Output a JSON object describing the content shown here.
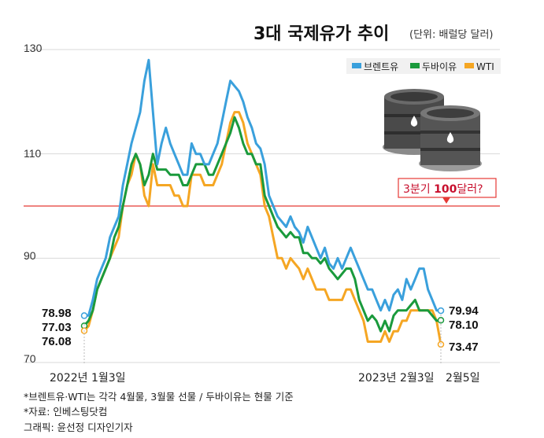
{
  "chart_data": {
    "type": "line",
    "title": "3대 국제유가 추이",
    "unit": "(단위: 배럴당 달러)",
    "ylim": [
      70,
      130
    ],
    "yticks": [
      "130",
      "110",
      "90",
      "70"
    ],
    "x_labels": {
      "start": "2022년 1월3일",
      "mid": "2023년 2월3일",
      "end": "2월5일"
    },
    "reference_line": {
      "value": 100,
      "color": "#e53935"
    },
    "callout": {
      "text_prefix": "3분기 ",
      "text_bold": "100",
      "text_suffix": "달러?"
    },
    "legend": [
      {
        "name": "브렌트유",
        "color": "#3aa0dc"
      },
      {
        "name": "두바이유",
        "color": "#1a9a3c"
      },
      {
        "name": "WTI",
        "color": "#f5a623"
      }
    ],
    "start_labels": [
      "78.98",
      "77.03",
      "76.08"
    ],
    "end_labels": [
      "79.94",
      "78.10",
      "73.47"
    ],
    "series": [
      {
        "name": "브렌트유",
        "color": "#3aa0dc",
        "values": [
          78.98,
          79,
          82,
          86,
          88,
          90,
          94,
          96,
          98,
          104,
          108,
          112,
          115,
          118,
          124,
          128,
          118,
          108,
          112,
          115,
          112,
          110,
          108,
          106,
          106,
          112,
          110,
          110,
          108,
          108,
          110,
          112,
          116,
          120,
          124,
          123,
          122,
          120,
          117,
          115,
          112,
          111,
          108,
          102,
          100,
          98,
          97,
          96,
          98,
          96,
          95,
          93,
          96,
          94,
          92,
          90,
          92,
          89,
          88,
          90,
          88,
          90,
          92,
          90,
          88,
          86,
          84,
          84,
          82,
          80,
          82,
          80,
          83,
          84,
          82,
          86,
          84,
          86,
          88,
          88,
          84,
          82,
          80,
          79.94
        ]
      },
      {
        "name": "두바이유",
        "color": "#1a9a3c",
        "values": [
          77.03,
          78,
          80,
          84,
          86,
          88,
          90,
          94,
          96,
          100,
          104,
          108,
          110,
          108,
          104,
          106,
          110,
          107,
          107,
          107,
          106,
          106,
          106,
          104,
          104,
          106,
          108,
          108,
          108,
          106,
          106,
          108,
          110,
          112,
          114,
          117,
          115,
          112,
          110,
          110,
          108,
          108,
          102,
          100,
          98,
          96,
          95,
          94,
          95,
          94,
          94,
          91,
          91,
          90,
          90,
          89,
          90,
          88,
          87,
          86,
          87,
          88,
          88,
          86,
          82,
          80,
          78,
          79,
          78,
          76,
          78,
          76,
          79,
          80,
          80,
          80,
          81,
          82,
          80,
          80,
          80,
          79,
          78,
          78.1
        ]
      },
      {
        "name": "WTI",
        "color": "#f5a623",
        "values": [
          76.08,
          77,
          80,
          84,
          86,
          88,
          90,
          92,
          94,
          100,
          104,
          106,
          110,
          108,
          102,
          100,
          108,
          104,
          104,
          104,
          104,
          102,
          102,
          100,
          100,
          106,
          106,
          106,
          104,
          104,
          104,
          106,
          108,
          112,
          116,
          118,
          118,
          116,
          112,
          110,
          108,
          106,
          100,
          98,
          94,
          90,
          90,
          88,
          90,
          89,
          88,
          86,
          88,
          86,
          84,
          84,
          84,
          82,
          82,
          82,
          82,
          84,
          84,
          82,
          80,
          78,
          74,
          74,
          74,
          74,
          76,
          74,
          76,
          76,
          78,
          78,
          80,
          80,
          80,
          80,
          80,
          80,
          78,
          73.47
        ]
      }
    ],
    "footnotes": [
      "*브렌트유·WTI는 각각 4월물, 3월물 선물 / 두바이유는 현물 기준",
      "*자료: 인베스팅닷컴",
      "그래픽: 윤선정 디자인기자"
    ]
  }
}
